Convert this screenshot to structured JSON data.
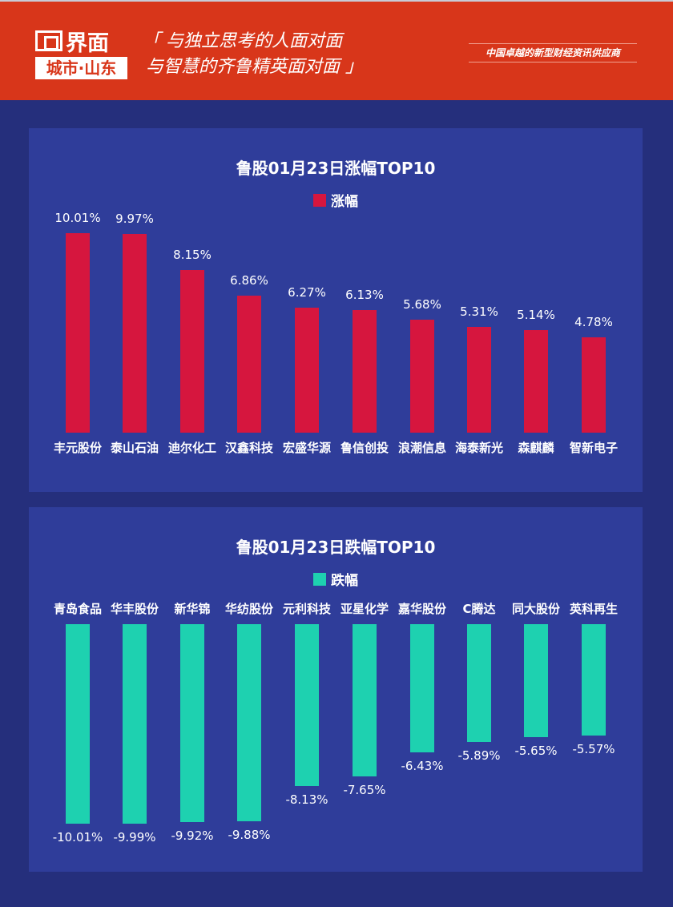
{
  "header": {
    "logo_name": "界面",
    "logo_sub": "城市·山东",
    "slogan_line1": "「 与独立思考的人面对面",
    "slogan_line2": "与智慧的齐鲁精英面对面 」",
    "tagline": "中国卓越的新型财经资讯供应商"
  },
  "colors": {
    "header": "#d8361a",
    "background": "#252f7c",
    "panel": "#2f3d9a",
    "gain": "#d6163e",
    "loss": "#1ed1b0"
  },
  "chart_data": [
    {
      "type": "bar",
      "title": "鲁股01月23日涨幅TOP10",
      "legend": "涨幅",
      "legend_position": "top",
      "color": "#d6163e",
      "categories": [
        "丰元股份",
        "泰山石油",
        "迪尔化工",
        "汉鑫科技",
        "宏盛华源",
        "鲁信创投",
        "浪潮信息",
        "海泰新光",
        "森麒麟",
        "智新电子"
      ],
      "values": [
        10.01,
        9.97,
        8.15,
        6.86,
        6.27,
        6.13,
        5.68,
        5.31,
        5.14,
        4.78
      ],
      "labels": [
        "10.01%",
        "9.97%",
        "8.15%",
        "6.86%",
        "6.27%",
        "6.13%",
        "5.68%",
        "5.31%",
        "5.14%",
        "4.78%"
      ]
    },
    {
      "type": "bar",
      "title": "鲁股01月23日跌幅TOP10",
      "legend": "跌幅",
      "legend_position": "top",
      "color": "#1ed1b0",
      "categories": [
        "青岛食品",
        "华丰股份",
        "新华锦",
        "华纺股份",
        "元利科技",
        "亚星化学",
        "嘉华股份",
        "C腾达",
        "同大股份",
        "英科再生"
      ],
      "values": [
        -10.01,
        -9.99,
        -9.92,
        -9.88,
        -8.13,
        -7.65,
        -6.43,
        -5.89,
        -5.65,
        -5.57
      ],
      "labels": [
        "-10.01%",
        "-9.99%",
        "-9.92%",
        "-9.88%",
        "-8.13%",
        "-7.65%",
        "-6.43%",
        "-5.89%",
        "-5.65%",
        "-5.57%"
      ]
    }
  ]
}
